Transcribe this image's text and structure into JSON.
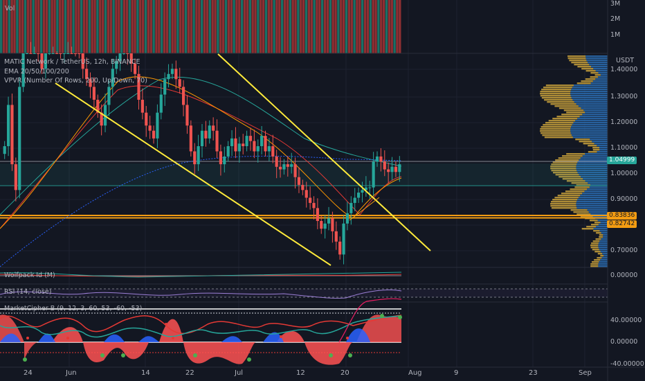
{
  "volume_pane": {
    "label": "Vol",
    "axis": [
      "3M",
      "2M",
      "1M"
    ]
  },
  "price_pane": {
    "legend": [
      "MATIC Network / TetherUS, 12h, BINANCE",
      "EMA 20/50/100/200",
      "VPVR (Number Of Rows, 200, Up/Down, 70)"
    ],
    "currency": "USDT",
    "axis": [
      "1.40000",
      "1.30000",
      "1.20000",
      "1.10000",
      "1.00000",
      "0.90000",
      "0.70000"
    ],
    "last_price": "1.04999",
    "level_1": "0.83836",
    "level_2": "0.82742",
    "colors": {
      "last_price": "#26a69a",
      "level": "#f39c12",
      "trendline": "#ffeb3b"
    }
  },
  "indicators": {
    "wolfpack": {
      "label": "Wolfpack Id (M)",
      "axis": "0.00000"
    },
    "rsi": {
      "label": "RSI (14, close)"
    },
    "market_cipher": {
      "label": "MarketCipher B (9, 12, 3, 60, 53, -60, -53)",
      "axis": [
        "40.00000",
        "0.00000",
        "-40.00000"
      ]
    }
  },
  "time_axis": [
    "24",
    "Jun",
    "14",
    "22",
    "Jul",
    "12",
    "20",
    "Aug",
    "9",
    "23",
    "Sep"
  ],
  "chart_data": {
    "type": "candlestick",
    "symbol": "MATIC Network / TetherUS",
    "interval": "12h",
    "exchange": "BINANCE",
    "y_range_visible": [
      0.65,
      1.48
    ],
    "last_price": 1.04999,
    "horizontal_levels": [
      0.83836,
      0.82742,
      0.95
    ],
    "closes": [
      1.12,
      1.28,
      1.05,
      0.95,
      1.35,
      1.52,
      1.62,
      1.55,
      1.58,
      1.48,
      1.42,
      1.5,
      1.55,
      1.58,
      1.52,
      1.48,
      1.55,
      1.6,
      1.55,
      1.5,
      1.48,
      1.42,
      1.38,
      1.35,
      1.3,
      1.25,
      1.2,
      1.28,
      1.35,
      1.42,
      1.45,
      1.5,
      1.52,
      1.48,
      1.44,
      1.4,
      1.3,
      1.25,
      1.2,
      1.18,
      1.15,
      1.25,
      1.32,
      1.38,
      1.4,
      1.42,
      1.38,
      1.35,
      1.28,
      1.2,
      1.1,
      1.05,
      1.12,
      1.18,
      1.15,
      1.2,
      1.18,
      1.1,
      1.05,
      1.08,
      1.12,
      1.15,
      1.1,
      1.13,
      1.12,
      1.16,
      1.14,
      1.1,
      1.12,
      1.16,
      1.1,
      1.12,
      1.08,
      1.04,
      1.03,
      1.05,
      1.04,
      1.05,
      1.0,
      0.97,
      0.95,
      0.92,
      0.9,
      0.88,
      0.83,
      0.8,
      0.82,
      0.84,
      0.79,
      0.75,
      0.7,
      0.82,
      0.86,
      0.9,
      0.92,
      0.94,
      0.95,
      0.96,
      0.96,
      1.06,
      1.08,
      1.06,
      1.03,
      1.02,
      1.04,
      1.02,
      1.05
    ]
  }
}
